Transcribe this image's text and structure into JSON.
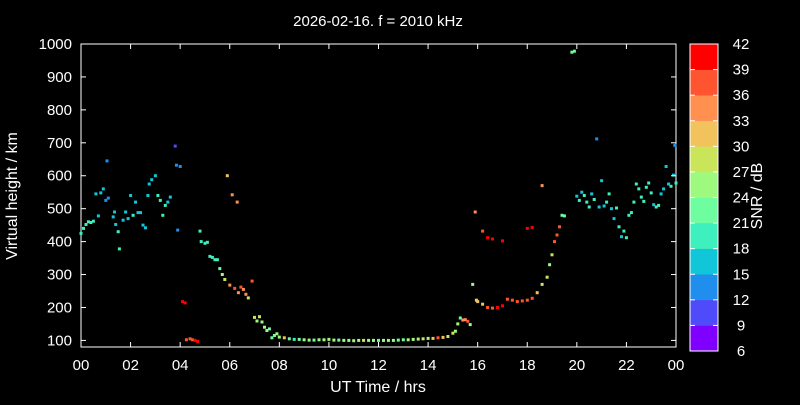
{
  "chart_data": {
    "type": "scatter",
    "title": "2026-02-16. f = 2010 kHz",
    "xlabel": "UT Time / hrs",
    "ylabel": "Virtual height / km",
    "xlim": [
      0,
      24
    ],
    "ylim": [
      80,
      1000
    ],
    "x_ticks": [
      "00",
      "02",
      "04",
      "06",
      "08",
      "10",
      "12",
      "14",
      "16",
      "18",
      "20",
      "22",
      "00"
    ],
    "y_ticks": [
      100,
      200,
      300,
      400,
      500,
      600,
      700,
      800,
      900,
      1000
    ],
    "grid": false,
    "colorbar": {
      "label": "SNR / dB",
      "range": [
        6,
        42
      ],
      "ticks": [
        6,
        9,
        12,
        15,
        18,
        21,
        24,
        27,
        30,
        33,
        36,
        39,
        42
      ],
      "colors": [
        "#8000ff",
        "#4f4bfb",
        "#1f8eed",
        "#11c6d9",
        "#3ff0bf",
        "#6efea0",
        "#9efa7e",
        "#cbe55a",
        "#f2c35c",
        "#ff9050",
        "#ff5430",
        "#ff0000"
      ]
    },
    "series": [
      {
        "points": [
          [
            0.0,
            425,
            18
          ],
          [
            0.1,
            440,
            19
          ],
          [
            0.2,
            452,
            19
          ],
          [
            0.3,
            460,
            19
          ],
          [
            0.4,
            458,
            19
          ],
          [
            0.5,
            462,
            19
          ],
          [
            0.6,
            545,
            16
          ],
          [
            0.7,
            478,
            17
          ],
          [
            0.8,
            548,
            16
          ],
          [
            0.9,
            560,
            15
          ],
          [
            1.0,
            525,
            14
          ],
          [
            1.05,
            645,
            12
          ],
          [
            1.1,
            532,
            14
          ],
          [
            1.3,
            475,
            15
          ],
          [
            1.35,
            490,
            15
          ],
          [
            1.4,
            452,
            16
          ],
          [
            1.5,
            430,
            18
          ],
          [
            1.55,
            378,
            19
          ],
          [
            1.7,
            465,
            17
          ],
          [
            1.8,
            490,
            16
          ],
          [
            1.9,
            470,
            17
          ],
          [
            2.0,
            540,
            17
          ],
          [
            2.1,
            480,
            18
          ],
          [
            2.2,
            520,
            16
          ],
          [
            2.3,
            488,
            16
          ],
          [
            2.4,
            488,
            16
          ],
          [
            2.5,
            450,
            17
          ],
          [
            2.6,
            442,
            16
          ],
          [
            2.7,
            540,
            15
          ],
          [
            2.75,
            575,
            15
          ],
          [
            2.85,
            588,
            15
          ],
          [
            3.0,
            600,
            15
          ],
          [
            3.1,
            540,
            18
          ],
          [
            3.2,
            525,
            19
          ],
          [
            3.3,
            480,
            20
          ],
          [
            3.4,
            510,
            18
          ],
          [
            3.5,
            520,
            17
          ],
          [
            3.6,
            535,
            16
          ],
          [
            3.8,
            690,
            11
          ],
          [
            3.85,
            632,
            13
          ],
          [
            3.9,
            435,
            14
          ],
          [
            4.0,
            628,
            13
          ],
          [
            4.1,
            218,
            39
          ],
          [
            4.2,
            214,
            39
          ],
          [
            4.25,
            102,
            36
          ],
          [
            4.4,
            105,
            38
          ],
          [
            4.5,
            102,
            37
          ],
          [
            4.6,
            100,
            39
          ],
          [
            4.7,
            97,
            39
          ],
          [
            4.8,
            432,
            18
          ],
          [
            4.85,
            400,
            19
          ],
          [
            5.0,
            395,
            19
          ],
          [
            5.1,
            398,
            20
          ],
          [
            5.2,
            355,
            18
          ],
          [
            5.3,
            352,
            19
          ],
          [
            5.4,
            345,
            18
          ],
          [
            5.5,
            345,
            20
          ],
          [
            5.6,
            318,
            22
          ],
          [
            5.7,
            300,
            24
          ],
          [
            5.8,
            285,
            28
          ],
          [
            5.9,
            600,
            30
          ],
          [
            6.0,
            268,
            34
          ],
          [
            6.1,
            542,
            33
          ],
          [
            6.2,
            258,
            36
          ],
          [
            6.3,
            520,
            33
          ],
          [
            6.35,
            245,
            35
          ],
          [
            6.45,
            262,
            36
          ],
          [
            6.55,
            255,
            35
          ],
          [
            6.65,
            240,
            34
          ],
          [
            6.75,
            229,
            27
          ],
          [
            6.9,
            280,
            38
          ],
          [
            7.0,
            170,
            27
          ],
          [
            7.1,
            159,
            25
          ],
          [
            7.2,
            172,
            29
          ],
          [
            7.3,
            156,
            25
          ],
          [
            7.4,
            140,
            25
          ],
          [
            7.5,
            130,
            26
          ],
          [
            7.6,
            135,
            21
          ],
          [
            7.7,
            108,
            22
          ],
          [
            7.8,
            115,
            23
          ],
          [
            7.9,
            120,
            24
          ],
          [
            8.0,
            110,
            25
          ],
          [
            8.2,
            108,
            30
          ],
          [
            8.4,
            105,
            23
          ],
          [
            8.6,
            103,
            20
          ],
          [
            8.8,
            103,
            23
          ],
          [
            9.0,
            102,
            24
          ],
          [
            9.2,
            101,
            25
          ],
          [
            9.4,
            101,
            23
          ],
          [
            9.6,
            102,
            24
          ],
          [
            9.8,
            102,
            26
          ],
          [
            10.0,
            103,
            24
          ],
          [
            10.2,
            101,
            25
          ],
          [
            10.4,
            101,
            23
          ],
          [
            10.6,
            100,
            24
          ],
          [
            10.8,
            100,
            26
          ],
          [
            11.0,
            99,
            24
          ],
          [
            11.2,
            100,
            25
          ],
          [
            11.4,
            100,
            27
          ],
          [
            11.6,
            100,
            26
          ],
          [
            11.8,
            100,
            25
          ],
          [
            12.0,
            100,
            23
          ],
          [
            12.2,
            100,
            24
          ],
          [
            12.4,
            100,
            25
          ],
          [
            12.6,
            100,
            24
          ],
          [
            12.8,
            101,
            22
          ],
          [
            13.0,
            102,
            23
          ],
          [
            13.2,
            102,
            26
          ],
          [
            13.4,
            103,
            25
          ],
          [
            13.6,
            104,
            25
          ],
          [
            13.8,
            105,
            27
          ],
          [
            14.0,
            106,
            26
          ],
          [
            14.2,
            106,
            30
          ],
          [
            14.4,
            108,
            38
          ],
          [
            14.6,
            109,
            32
          ],
          [
            14.8,
            112,
            29
          ],
          [
            15.0,
            122,
            27
          ],
          [
            15.1,
            128,
            26
          ],
          [
            15.2,
            150,
            24
          ],
          [
            15.3,
            168,
            22
          ],
          [
            15.4,
            162,
            34
          ],
          [
            15.5,
            163,
            35
          ],
          [
            15.6,
            158,
            37
          ],
          [
            15.7,
            148,
            26
          ],
          [
            15.8,
            270,
            26
          ],
          [
            15.9,
            490,
            34
          ],
          [
            15.95,
            222,
            29
          ],
          [
            16.0,
            218,
            30
          ],
          [
            16.2,
            210,
            32
          ],
          [
            16.4,
            200,
            36
          ],
          [
            16.6,
            198,
            38
          ],
          [
            16.8,
            200,
            39
          ],
          [
            17.0,
            205,
            39
          ],
          [
            17.2,
            225,
            38
          ],
          [
            17.4,
            222,
            37
          ],
          [
            17.6,
            218,
            37
          ],
          [
            17.8,
            220,
            37
          ],
          [
            18.0,
            222,
            36
          ],
          [
            18.2,
            228,
            36
          ],
          [
            18.4,
            245,
            32
          ],
          [
            18.6,
            270,
            29
          ],
          [
            18.8,
            292,
            27
          ],
          [
            18.9,
            330,
            26
          ],
          [
            19.0,
            360,
            28
          ],
          [
            19.1,
            400,
            36
          ],
          [
            19.2,
            420,
            36
          ],
          [
            19.3,
            445,
            38
          ],
          [
            19.4,
            480,
            22
          ],
          [
            19.5,
            478,
            23
          ],
          [
            16.2,
            432,
            38
          ],
          [
            16.4,
            412,
            39
          ],
          [
            16.6,
            408,
            39
          ],
          [
            17.0,
            402,
            40
          ],
          [
            18.0,
            440,
            39
          ],
          [
            18.2,
            443,
            39
          ],
          [
            18.6,
            570,
            35
          ],
          [
            19.8,
            975,
            21
          ],
          [
            19.9,
            978,
            21
          ],
          [
            20.0,
            538,
            17
          ],
          [
            20.1,
            525,
            18
          ],
          [
            20.2,
            550,
            16
          ],
          [
            20.3,
            540,
            18
          ],
          [
            20.4,
            520,
            19
          ],
          [
            20.5,
            505,
            20
          ],
          [
            20.6,
            545,
            17
          ],
          [
            20.7,
            528,
            18
          ],
          [
            20.8,
            712,
            14
          ],
          [
            20.9,
            505,
            16
          ],
          [
            21.0,
            585,
            15
          ],
          [
            21.1,
            508,
            17
          ],
          [
            21.2,
            520,
            18
          ],
          [
            21.3,
            545,
            18
          ],
          [
            21.4,
            500,
            17
          ],
          [
            21.5,
            470,
            17
          ],
          [
            21.6,
            502,
            18
          ],
          [
            21.7,
            445,
            18
          ],
          [
            21.8,
            415,
            17
          ],
          [
            21.9,
            432,
            18
          ],
          [
            22.0,
            412,
            18
          ],
          [
            22.1,
            480,
            18
          ],
          [
            22.2,
            488,
            20
          ],
          [
            22.3,
            520,
            19
          ],
          [
            22.4,
            575,
            18
          ],
          [
            22.5,
            560,
            19
          ],
          [
            22.6,
            535,
            18
          ],
          [
            22.7,
            522,
            19
          ],
          [
            22.8,
            565,
            18
          ],
          [
            22.9,
            578,
            18
          ],
          [
            23.0,
            548,
            18
          ],
          [
            23.1,
            512,
            17
          ],
          [
            23.2,
            505,
            18
          ],
          [
            23.3,
            510,
            18
          ],
          [
            23.4,
            545,
            17
          ],
          [
            23.5,
            560,
            17
          ],
          [
            23.6,
            628,
            16
          ],
          [
            23.7,
            575,
            17
          ],
          [
            23.8,
            568,
            18
          ],
          [
            23.9,
            602,
            16
          ],
          [
            23.95,
            692,
            12
          ],
          [
            24.0,
            578,
            18
          ]
        ]
      }
    ]
  }
}
